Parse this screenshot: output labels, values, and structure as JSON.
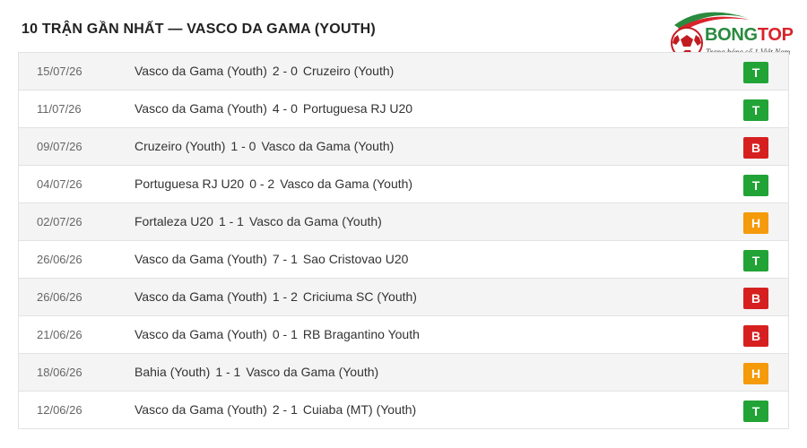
{
  "title": "10 TRẬN GẦN NHẤT — VASCO DA GAMA (YOUTH)",
  "logo": {
    "brand_part1": "BONG",
    "brand_part2": "TOP",
    "tagline": "Trang bóng số 1 Việt Nam"
  },
  "result_colors": {
    "T": "#21a336",
    "B": "#d6201f",
    "H": "#f49a0b"
  },
  "matches": [
    {
      "date": "15/07/26",
      "home": "Vasco da Gama (Youth)",
      "score": "2 - 0",
      "away": "Cruzeiro (Youth)",
      "result": "T"
    },
    {
      "date": "11/07/26",
      "home": "Vasco da Gama (Youth)",
      "score": "4 - 0",
      "away": "Portuguesa RJ U20",
      "result": "T"
    },
    {
      "date": "09/07/26",
      "home": "Cruzeiro (Youth)",
      "score": "1 - 0",
      "away": "Vasco da Gama (Youth)",
      "result": "B"
    },
    {
      "date": "04/07/26",
      "home": "Portuguesa RJ U20",
      "score": "0 - 2",
      "away": "Vasco da Gama (Youth)",
      "result": "T"
    },
    {
      "date": "02/07/26",
      "home": "Fortaleza U20",
      "score": "1 - 1",
      "away": "Vasco da Gama (Youth)",
      "result": "H"
    },
    {
      "date": "26/06/26",
      "home": "Vasco da Gama (Youth)",
      "score": "7 - 1",
      "away": "Sao Cristovao U20",
      "result": "T"
    },
    {
      "date": "26/06/26",
      "home": "Vasco da Gama (Youth)",
      "score": "1 - 2",
      "away": "Criciuma SC (Youth)",
      "result": "B"
    },
    {
      "date": "21/06/26",
      "home": "Vasco da Gama (Youth)",
      "score": "0 - 1",
      "away": "RB Bragantino Youth",
      "result": "B"
    },
    {
      "date": "18/06/26",
      "home": "Bahia (Youth)",
      "score": "1 - 1",
      "away": "Vasco da Gama (Youth)",
      "result": "H"
    },
    {
      "date": "12/06/26",
      "home": "Vasco da Gama (Youth)",
      "score": "2 - 1",
      "away": "Cuiaba (MT) (Youth)",
      "result": "T"
    }
  ]
}
